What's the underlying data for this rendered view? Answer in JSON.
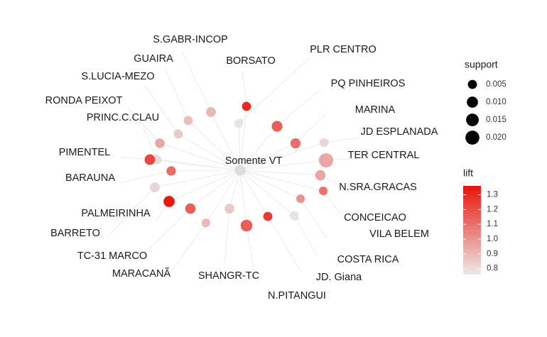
{
  "chart_data": {
    "type": "network",
    "center": "Somente VT",
    "nodes": [
      {
        "label": "S.GABR-INCOP",
        "support": 0.0065,
        "lift": 0.9
      },
      {
        "label": "BORSATO",
        "support": 0.005,
        "lift": 1.3
      },
      {
        "label": "GUAIRA",
        "support": 0.005,
        "lift": 0.88
      },
      {
        "label": "S.LUCIA-MEZO",
        "support": 0.0045,
        "lift": 0.85
      },
      {
        "label": "RONDA PEIXOT",
        "support": 0.006,
        "lift": 0.95
      },
      {
        "label": "PRINC.C.CLAU",
        "support": 0.0055,
        "lift": 0.8
      },
      {
        "label": "PIMENTEL",
        "support": 0.0085,
        "lift": 1.22
      },
      {
        "label": "BARAUNA",
        "support": 0.0055,
        "lift": 1.12
      },
      {
        "label": "PALMEIRINHA",
        "support": 0.01,
        "lift": 1.35
      },
      {
        "label": "BARRETO",
        "support": 0.0065,
        "lift": 0.82
      },
      {
        "label": "TC-31 MARCO",
        "support": 0.008,
        "lift": 1.15
      },
      {
        "label": "MARACANÃ",
        "support": 0.004,
        "lift": 0.9
      },
      {
        "label": "SHANGR-TC",
        "support": 0.0065,
        "lift": 0.85
      },
      {
        "label": "N.PITANGUI",
        "support": 0.012,
        "lift": 1.15
      },
      {
        "label": "JD. Giana",
        "support": 0.005,
        "lift": 1.25
      },
      {
        "label": "COSTA RICA",
        "support": 0.005,
        "lift": 0.78
      },
      {
        "label": "VILA BELEM",
        "support": 0.004,
        "lift": 1.0
      },
      {
        "label": "CONCEICAO",
        "support": 0.004,
        "lift": 1.1
      },
      {
        "label": "N.SRA.GRACAS",
        "support": 0.008,
        "lift": 0.95
      },
      {
        "label": "TER CENTRAL",
        "support": 0.021,
        "lift": 0.95
      },
      {
        "label": "JD ESPLANADA",
        "support": 0.004,
        "lift": 0.82
      },
      {
        "label": "MARINA",
        "support": 0.0075,
        "lift": 1.1
      },
      {
        "label": "PQ PINHEIROS",
        "support": 0.009,
        "lift": 1.15
      },
      {
        "label": "PLR CENTRO",
        "support": 0.0045,
        "lift": 0.78
      }
    ],
    "legend": {
      "support": {
        "title": "support",
        "breaks": [
          0.005,
          0.01,
          0.015,
          0.02
        ],
        "labels": [
          "0.005",
          "0.010",
          "0.015",
          "0.020"
        ]
      },
      "lift": {
        "title": "lift",
        "breaks": [
          0.8,
          0.9,
          1.0,
          1.1,
          1.2,
          1.3
        ],
        "labels": [
          "0.8",
          "0.9",
          "1.0",
          "1.1",
          "1.2",
          "1.3"
        ],
        "range": [
          0.76,
          1.36
        ]
      },
      "placement": "right"
    },
    "colors": {
      "low": "#eaeaea",
      "high": "#e8140a",
      "edge": "#e9e9e9",
      "text": "#1a1a1a"
    }
  }
}
